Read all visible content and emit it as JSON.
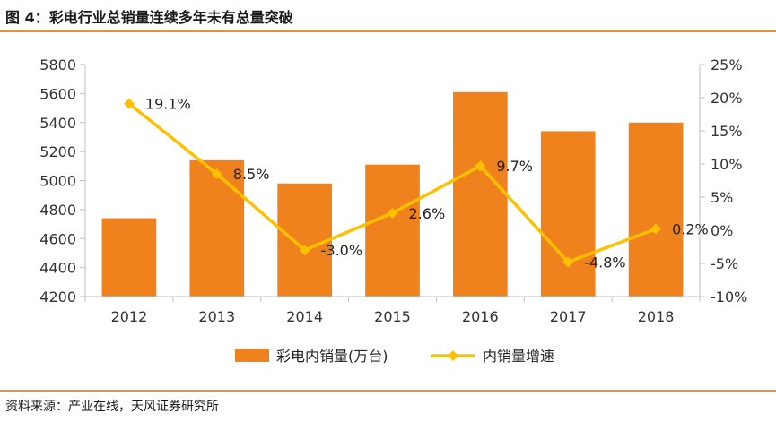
{
  "header": {
    "title": "图 4：彩电行业总销量连续多年未有总量突破"
  },
  "footer": {
    "source": "资料来源：产业在线，天风证券研究所"
  },
  "colors": {
    "bar": "#f0821e",
    "line": "#ffc000",
    "rule": "#e8912f",
    "axis": "#bfbfbf"
  },
  "chart_data": {
    "type": "bar",
    "categories": [
      "2012",
      "2013",
      "2014",
      "2015",
      "2016",
      "2017",
      "2018"
    ],
    "series": [
      {
        "name": "彩电内销量(万台)",
        "type": "bar",
        "axis": "left",
        "values": [
          4740,
          5140,
          4980,
          5110,
          5610,
          5340,
          5400
        ]
      },
      {
        "name": "内销量增速",
        "type": "line",
        "axis": "right",
        "values": [
          19.1,
          8.5,
          -3.0,
          2.6,
          9.7,
          -4.8,
          0.2
        ],
        "labels": [
          "19.1%",
          "8.5%",
          "-3.0%",
          "2.6%",
          "9.7%",
          "-4.8%",
          "0.2%"
        ]
      }
    ],
    "y_left": {
      "min": 4200,
      "max": 5800,
      "ticks": [
        "4200",
        "4400",
        "4600",
        "4800",
        "5000",
        "5200",
        "5400",
        "5600",
        "5800"
      ]
    },
    "y_right": {
      "min": -10,
      "max": 25,
      "ticks": [
        "-10%",
        "-5%",
        "0%",
        "5%",
        "10%",
        "15%",
        "20%",
        "25%"
      ]
    },
    "legend": "bottom"
  }
}
